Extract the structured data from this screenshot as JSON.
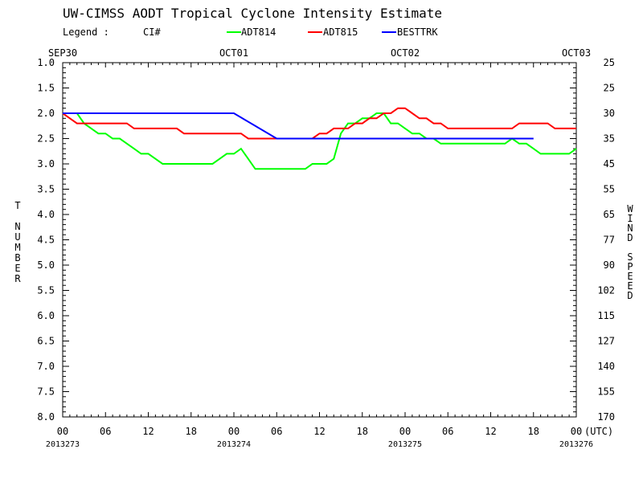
{
  "chart_data": {
    "type": "line",
    "title": "UW-CIMSS AODT Tropical Cyclone Intensity Estimate",
    "legend": {
      "label": "Legend :",
      "metric": "CI#",
      "placement": "top"
    },
    "ylabel": "T NUMBER",
    "y2label": "WIND SPEED",
    "ylim": [
      1.0,
      8.0
    ],
    "y_inverted": true,
    "y_ticks": [
      "1.0",
      "1.5",
      "2.0",
      "2.5",
      "3.0",
      "3.5",
      "4.0",
      "4.5",
      "5.0",
      "5.5",
      "6.0",
      "6.5",
      "7.0",
      "7.5",
      "8.0"
    ],
    "y2_ticks": [
      "25",
      "25",
      "30",
      "35",
      "45",
      "55",
      "65",
      "77",
      "90",
      "102",
      "115",
      "127",
      "140",
      "155",
      "170"
    ],
    "xlim": [
      0,
      72
    ],
    "x_unit_label": "(UTC)",
    "x_ticks": [
      "00",
      "06",
      "12",
      "18",
      "00",
      "06",
      "12",
      "18",
      "00",
      "06",
      "12",
      "18",
      "00"
    ],
    "top_date_labels": [
      "SEP30",
      "OCT01",
      "OCT02",
      "OCT03"
    ],
    "julian_labels": [
      "2013273",
      "2013274",
      "2013275",
      "2013276"
    ],
    "grid": false,
    "colors": {
      "ADT814": "#00ff00",
      "ADT815": "#ff0000",
      "BESTTRK": "#0000ff"
    },
    "series": [
      {
        "name": "ADT814",
        "x": [
          0,
          1,
          2,
          3,
          4,
          5,
          6,
          7,
          8,
          9,
          10,
          11,
          12,
          13,
          14,
          15,
          16,
          17,
          18,
          19,
          20,
          21,
          22,
          23,
          24,
          25,
          26,
          27,
          28,
          29,
          30,
          31,
          32,
          33,
          34,
          35,
          36,
          37,
          38,
          39,
          40,
          41,
          42,
          43,
          44,
          45,
          46,
          47,
          48,
          49,
          50,
          51,
          52,
          53,
          54,
          55,
          56,
          57,
          58,
          59,
          60,
          61,
          62,
          63,
          64,
          65,
          66,
          67,
          68,
          69,
          70,
          71,
          72
        ],
        "values": [
          2.0,
          2.0,
          2.0,
          2.2,
          2.3,
          2.4,
          2.4,
          2.5,
          2.5,
          2.6,
          2.7,
          2.8,
          2.8,
          2.9,
          3.0,
          3.0,
          3.0,
          3.0,
          3.0,
          3.0,
          3.0,
          3.0,
          2.9,
          2.8,
          2.8,
          2.7,
          2.9,
          3.1,
          3.1,
          3.1,
          3.1,
          3.1,
          3.1,
          3.1,
          3.1,
          3.0,
          3.0,
          3.0,
          2.9,
          2.4,
          2.2,
          2.2,
          2.1,
          2.1,
          2.0,
          2.0,
          2.2,
          2.2,
          2.3,
          2.4,
          2.4,
          2.5,
          2.5,
          2.6,
          2.6,
          2.6,
          2.6,
          2.6,
          2.6,
          2.6,
          2.6,
          2.6,
          2.6,
          2.5,
          2.6,
          2.6,
          2.7,
          2.8,
          2.8,
          2.8,
          2.8,
          2.8,
          2.7
        ]
      },
      {
        "name": "ADT815",
        "x": [
          0,
          1,
          2,
          3,
          4,
          5,
          6,
          7,
          8,
          9,
          10,
          11,
          12,
          13,
          14,
          15,
          16,
          17,
          18,
          19,
          20,
          21,
          22,
          23,
          24,
          25,
          26,
          27,
          28,
          29,
          30,
          31,
          32,
          33,
          34,
          35,
          36,
          37,
          38,
          39,
          40,
          41,
          42,
          43,
          44,
          45,
          46,
          47,
          48,
          49,
          50,
          51,
          52,
          53,
          54,
          55,
          56,
          57,
          58,
          59,
          60,
          61,
          62,
          63,
          64,
          65,
          66,
          67,
          68,
          69,
          70,
          71,
          72
        ],
        "values": [
          2.0,
          2.1,
          2.2,
          2.2,
          2.2,
          2.2,
          2.2,
          2.2,
          2.2,
          2.2,
          2.3,
          2.3,
          2.3,
          2.3,
          2.3,
          2.3,
          2.3,
          2.4,
          2.4,
          2.4,
          2.4,
          2.4,
          2.4,
          2.4,
          2.4,
          2.4,
          2.5,
          2.5,
          2.5,
          2.5,
          2.5,
          2.5,
          2.5,
          2.5,
          2.5,
          2.5,
          2.4,
          2.4,
          2.3,
          2.3,
          2.3,
          2.2,
          2.2,
          2.1,
          2.1,
          2.0,
          2.0,
          1.9,
          1.9,
          2.0,
          2.1,
          2.1,
          2.2,
          2.2,
          2.3,
          2.3,
          2.3,
          2.3,
          2.3,
          2.3,
          2.3,
          2.3,
          2.3,
          2.3,
          2.2,
          2.2,
          2.2,
          2.2,
          2.2,
          2.3,
          2.3,
          2.3,
          2.3
        ]
      },
      {
        "name": "BESTTRK",
        "x": [
          0,
          24,
          30,
          66
        ],
        "values": [
          2.0,
          2.0,
          2.5,
          2.5
        ]
      }
    ]
  }
}
